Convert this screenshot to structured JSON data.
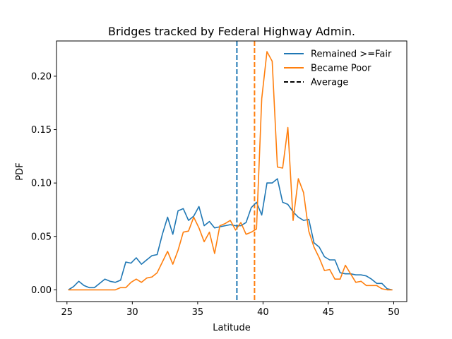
{
  "chart_data": {
    "type": "line",
    "title": "Bridges tracked by Federal Highway Admin.",
    "xlabel": "Latitude",
    "ylabel": "PDF",
    "xlim": [
      24.2,
      51.0
    ],
    "ylim": [
      -0.011,
      0.233
    ],
    "xticks": [
      25,
      30,
      35,
      40,
      45,
      50
    ],
    "yticks": [
      0.0,
      0.05,
      0.1,
      0.15,
      0.2
    ],
    "ytick_labels": [
      "0.00",
      "0.05",
      "0.10",
      "0.15",
      "0.20"
    ],
    "grid": false,
    "legend_position": "top-right",
    "series": [
      {
        "name": "Remained >=Fair",
        "color": "#1f77b4",
        "x": [
          25.1,
          25.5,
          25.9,
          26.3,
          26.7,
          27.1,
          27.5,
          27.9,
          28.3,
          28.7,
          29.1,
          29.5,
          29.9,
          30.3,
          30.7,
          31.1,
          31.5,
          31.9,
          32.3,
          32.7,
          33.1,
          33.5,
          33.9,
          34.3,
          34.7,
          35.1,
          35.5,
          35.9,
          36.3,
          36.7,
          37.1,
          37.5,
          37.9,
          38.3,
          38.7,
          39.1,
          39.5,
          39.9,
          40.3,
          40.7,
          41.1,
          41.5,
          41.9,
          42.3,
          42.7,
          43.1,
          43.5,
          43.9,
          44.3,
          44.7,
          45.1,
          45.5,
          45.9,
          46.3,
          46.7,
          47.1,
          47.5,
          47.9,
          48.3,
          48.7,
          49.1,
          49.5,
          49.9
        ],
        "y": [
          0.0,
          0.003,
          0.008,
          0.004,
          0.002,
          0.002,
          0.006,
          0.01,
          0.008,
          0.007,
          0.009,
          0.026,
          0.025,
          0.03,
          0.024,
          0.028,
          0.032,
          0.033,
          0.052,
          0.068,
          0.052,
          0.074,
          0.076,
          0.065,
          0.069,
          0.078,
          0.06,
          0.064,
          0.058,
          0.059,
          0.06,
          0.061,
          0.06,
          0.06,
          0.063,
          0.077,
          0.082,
          0.07,
          0.1,
          0.1,
          0.104,
          0.082,
          0.08,
          0.073,
          0.068,
          0.065,
          0.066,
          0.044,
          0.04,
          0.031,
          0.028,
          0.028,
          0.016,
          0.015,
          0.015,
          0.014,
          0.014,
          0.013,
          0.01,
          0.006,
          0.006,
          0.001,
          0.0
        ]
      },
      {
        "name": "Became Poor",
        "color": "#ff7f0e",
        "x": [
          25.1,
          25.5,
          25.9,
          26.3,
          26.7,
          27.1,
          27.5,
          27.9,
          28.3,
          28.7,
          29.1,
          29.5,
          29.9,
          30.3,
          30.7,
          31.1,
          31.5,
          31.9,
          32.3,
          32.7,
          33.1,
          33.5,
          33.9,
          34.3,
          34.7,
          35.1,
          35.5,
          35.9,
          36.3,
          36.7,
          37.1,
          37.5,
          37.9,
          38.3,
          38.7,
          39.1,
          39.5,
          39.9,
          40.3,
          40.7,
          41.1,
          41.5,
          41.9,
          42.3,
          42.7,
          43.1,
          43.5,
          43.9,
          44.3,
          44.7,
          45.1,
          45.5,
          45.9,
          46.3,
          46.7,
          47.1,
          47.5,
          47.9,
          48.3,
          48.7,
          49.1,
          49.5,
          49.9
        ],
        "y": [
          0.0,
          0.0,
          0.0,
          0.0,
          0.0,
          0.0,
          0.0,
          0.0,
          0.0,
          0.0,
          0.002,
          0.002,
          0.007,
          0.01,
          0.007,
          0.011,
          0.012,
          0.016,
          0.026,
          0.036,
          0.024,
          0.037,
          0.054,
          0.055,
          0.068,
          0.058,
          0.045,
          0.054,
          0.034,
          0.06,
          0.062,
          0.065,
          0.056,
          0.063,
          0.052,
          0.054,
          0.057,
          0.179,
          0.223,
          0.214,
          0.115,
          0.114,
          0.152,
          0.065,
          0.104,
          0.091,
          0.055,
          0.04,
          0.03,
          0.018,
          0.019,
          0.01,
          0.01,
          0.023,
          0.015,
          0.007,
          0.008,
          0.004,
          0.004,
          0.004,
          0.001,
          0.0,
          0.0
        ]
      }
    ],
    "reference_lines": [
      {
        "name": "Average",
        "x": 38.0,
        "color": "#1f77b4",
        "style": "dashed"
      },
      {
        "name": "Average",
        "x": 39.35,
        "color": "#ff7f0e",
        "style": "dashed"
      }
    ],
    "legend": [
      {
        "label": "Remained >=Fair",
        "color": "#1f77b4",
        "style": "solid"
      },
      {
        "label": "Became Poor",
        "color": "#ff7f0e",
        "style": "solid"
      },
      {
        "label": "Average",
        "color": "#000000",
        "style": "dashed"
      }
    ]
  }
}
